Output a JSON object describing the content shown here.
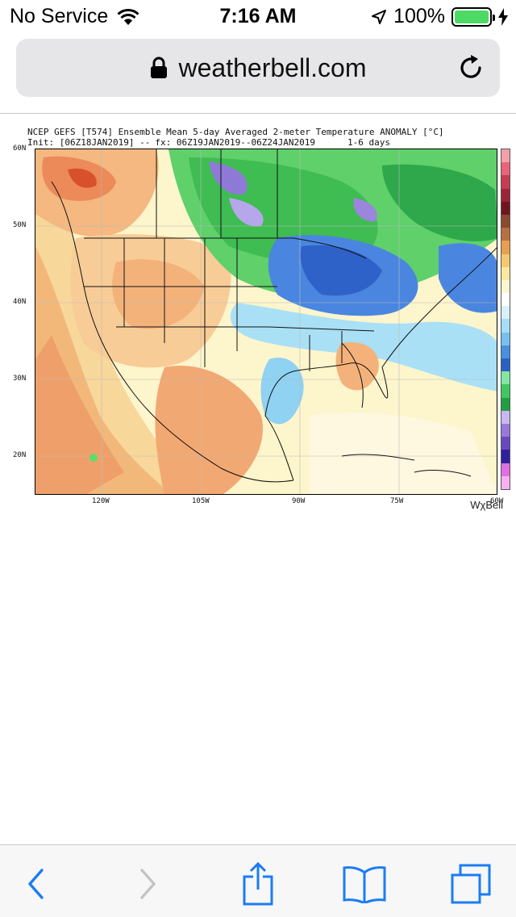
{
  "status_bar": {
    "carrier": "No Service",
    "time": "7:16 AM",
    "battery": "100%",
    "battery_level": 1.0,
    "battery_color": "#4cd964"
  },
  "address_bar": {
    "url": "weatherbell.com",
    "lock_icon": "lock-icon",
    "reload_icon": "reload-icon"
  },
  "map": {
    "title": "NCEP GEFS [T574] Ensemble Mean 5-day Averaged 2-meter Temperature ANOMALY [°C]",
    "init": "Init: [06Z18JAN2019] --",
    "forecast": "fx: 06Z19JAN2019--06Z24JAN2019",
    "days": "1-6 days",
    "lat_labels": [
      "60N",
      "50N",
      "40N",
      "30N",
      "20N"
    ],
    "lon_labels": [
      "120W",
      "105W",
      "90W",
      "75W",
      "60W"
    ],
    "brand": "WχBell",
    "colorbar": [
      "#f4a0a8",
      "#e8647a",
      "#c83c52",
      "#9c2434",
      "#70141e",
      "#8a4a32",
      "#b87040",
      "#e8a050",
      "#f4c870",
      "#fae8a0",
      "#fdf6d0",
      "#ffffff",
      "#d8f0fc",
      "#a8dcf8",
      "#78c0f0",
      "#4890e0",
      "#2860c8",
      "#80e8a0",
      "#40c860",
      "#20a040",
      "#c8b8f0",
      "#9878d8",
      "#6848c0",
      "#3020a0",
      "#e070e0",
      "#f8b0f0"
    ],
    "accent_colors": {
      "warm": "#f0a060",
      "cold_green": "#40c050",
      "cold_blue": "#3870d8",
      "cool_cyan": "#a8e4f8"
    }
  },
  "toolbar": {
    "back_icon": "back-chevron-icon",
    "forward_icon": "forward-chevron-icon",
    "share_icon": "share-icon",
    "bookmarks_icon": "bookmarks-icon",
    "tabs_icon": "tabs-icon",
    "accent": "#1a7cf5"
  }
}
